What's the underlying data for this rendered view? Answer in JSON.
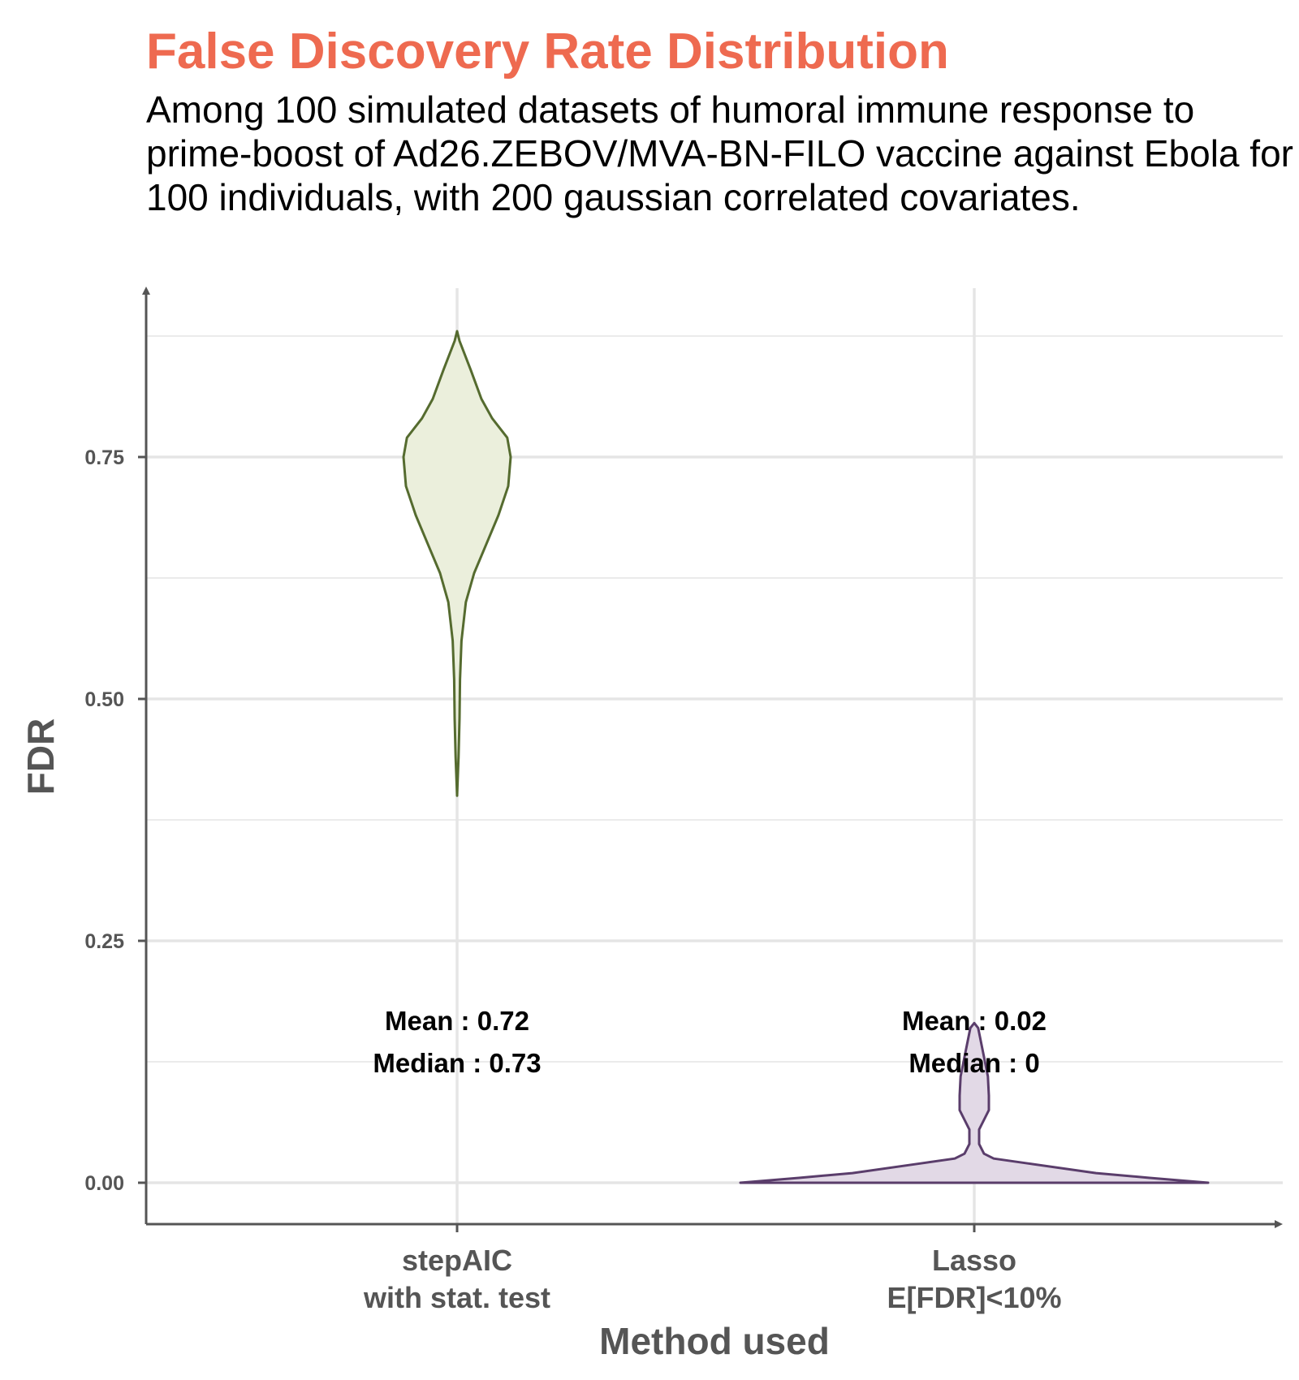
{
  "chart_data": {
    "type": "violin",
    "title": "False Discovery Rate Distribution",
    "subtitle": "Among 100 simulated datasets of humoral immune response to prime-boost of Ad26.ZEBOV/MVA-BN-FILO vaccine against Ebola for 100 individuals, with 200 gaussian correlated covariates.",
    "xlabel": "Method used",
    "ylabel": "FDR",
    "ylim": [
      -0.045,
      0.93
    ],
    "yticks": [
      0.0,
      0.25,
      0.5,
      0.75
    ],
    "ytick_labels": [
      "0.00",
      "0.25",
      "0.50",
      "0.75"
    ],
    "grid": true,
    "categories": [
      {
        "label_lines": [
          "stepAIC",
          "with stat. test"
        ],
        "fill": "#ebefdc",
        "stroke": "#556b2f",
        "mean_label": "Mean : 0.72",
        "median_label": "Median : 0.73",
        "density": [
          [
            0.4,
            0.0
          ],
          [
            0.44,
            0.003
          ],
          [
            0.48,
            0.005
          ],
          [
            0.52,
            0.006
          ],
          [
            0.56,
            0.009
          ],
          [
            0.6,
            0.018
          ],
          [
            0.63,
            0.035
          ],
          [
            0.66,
            0.06
          ],
          [
            0.69,
            0.085
          ],
          [
            0.72,
            0.105
          ],
          [
            0.75,
            0.11
          ],
          [
            0.77,
            0.103
          ],
          [
            0.79,
            0.072
          ],
          [
            0.81,
            0.05
          ],
          [
            0.84,
            0.028
          ],
          [
            0.87,
            0.005
          ],
          [
            0.88,
            0.0
          ]
        ]
      },
      {
        "label_lines": [
          "Lasso",
          "E[FDR]<10%"
        ],
        "fill": "#e2d9e6",
        "stroke": "#5a3d6b",
        "mean_label": "Mean : 0.02",
        "median_label": "Median : 0",
        "density": [
          [
            0.0,
            0.48
          ],
          [
            0.005,
            0.36
          ],
          [
            0.01,
            0.25
          ],
          [
            0.02,
            0.11
          ],
          [
            0.025,
            0.04
          ],
          [
            0.03,
            0.02
          ],
          [
            0.04,
            0.01
          ],
          [
            0.055,
            0.01
          ],
          [
            0.065,
            0.02
          ],
          [
            0.075,
            0.03
          ],
          [
            0.09,
            0.03
          ],
          [
            0.11,
            0.028
          ],
          [
            0.13,
            0.02
          ],
          [
            0.15,
            0.012
          ],
          [
            0.16,
            0.008
          ],
          [
            0.165,
            0.0
          ]
        ]
      }
    ]
  }
}
